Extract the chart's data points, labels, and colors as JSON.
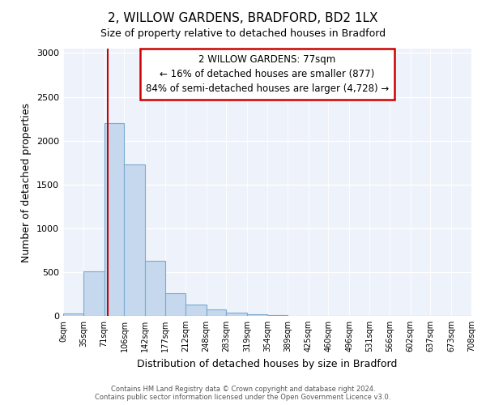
{
  "title": "2, WILLOW GARDENS, BRADFORD, BD2 1LX",
  "subtitle": "Size of property relative to detached houses in Bradford",
  "xlabel": "Distribution of detached houses by size in Bradford",
  "ylabel": "Number of detached properties",
  "bin_edges": [
    0,
    35,
    71,
    106,
    142,
    177,
    212,
    248,
    283,
    319,
    354,
    389,
    425,
    460,
    496,
    531,
    566,
    602,
    637,
    673,
    708
  ],
  "bar_heights": [
    25,
    510,
    2200,
    1730,
    630,
    260,
    130,
    70,
    35,
    20,
    10,
    3,
    2,
    0,
    0,
    0,
    0,
    0,
    0,
    0
  ],
  "bar_color": "#c5d8ee",
  "bar_edge_color": "#7aaad0",
  "vline_x": 77,
  "vline_color": "#cc0000",
  "annotation_line1": "2 WILLOW GARDENS: 77sqm",
  "annotation_line2": "← 16% of detached houses are smaller (877)",
  "annotation_line3": "84% of semi-detached houses are larger (4,728) →",
  "annotation_box_color": "#cc0000",
  "ylim": [
    0,
    3050
  ],
  "yticks": [
    0,
    500,
    1000,
    1500,
    2000,
    2500,
    3000
  ],
  "tick_labels": [
    "0sqm",
    "35sqm",
    "71sqm",
    "106sqm",
    "142sqm",
    "177sqm",
    "212sqm",
    "248sqm",
    "283sqm",
    "319sqm",
    "354sqm",
    "389sqm",
    "425sqm",
    "460sqm",
    "496sqm",
    "531sqm",
    "566sqm",
    "602sqm",
    "637sqm",
    "673sqm",
    "708sqm"
  ],
  "footer_line1": "Contains HM Land Registry data © Crown copyright and database right 2024.",
  "footer_line2": "Contains public sector information licensed under the Open Government Licence v3.0.",
  "bg_color": "#ffffff",
  "plot_bg_color": "#eef2fa",
  "grid_color": "#ffffff"
}
